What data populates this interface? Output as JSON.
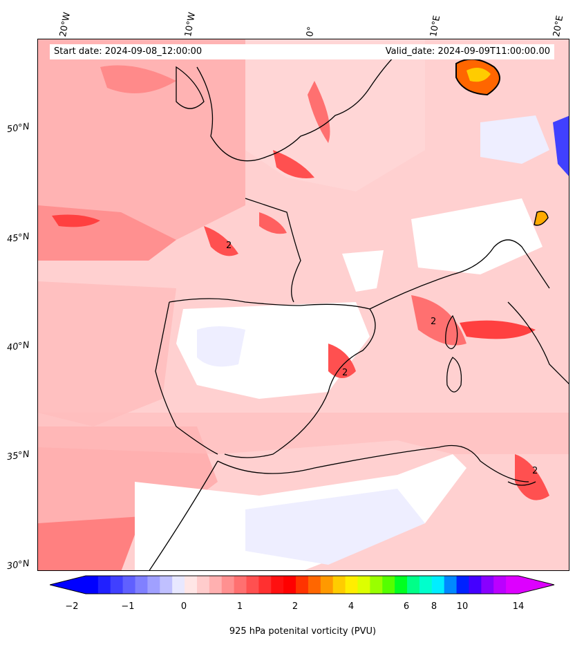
{
  "header": {
    "start_date": "Start date: 2024-09-08_12:00:00",
    "valid_date": "Valid_date: 2024-09-09T11:00:00.00"
  },
  "longitude_labels": [
    "20°W",
    "10°W",
    "0°",
    "10°E",
    "20°E"
  ],
  "latitude_labels": [
    "50°N",
    "45°N",
    "40°N",
    "35°N",
    "30°N"
  ],
  "contour_label": "2",
  "colorbar": {
    "tick_labels": [
      "−2",
      "−1",
      "0",
      "1",
      "2",
      "4",
      "6",
      "8",
      "10",
      "14"
    ],
    "label": "925 hPa potenital vorticity (PVU)",
    "colors": [
      "#0000ff",
      "#2020ff",
      "#4040ff",
      "#6060ff",
      "#8080ff",
      "#a0a0ff",
      "#c0c0ff",
      "#e8e8ff",
      "#ffe6e6",
      "#ffcccc",
      "#ffb0b0",
      "#ff9090",
      "#ff7070",
      "#ff5050",
      "#ff3030",
      "#ff1010",
      "#ff0000",
      "#ff3300",
      "#ff6600",
      "#ff9900",
      "#ffcc00",
      "#ffee00",
      "#ddff00",
      "#99ff00",
      "#55ff00",
      "#00ff22",
      "#00ff88",
      "#00ffcc",
      "#00eeff",
      "#0088ff",
      "#0022ff",
      "#4400ff",
      "#8800ff",
      "#bb00ff",
      "#dd00ff"
    ]
  }
}
